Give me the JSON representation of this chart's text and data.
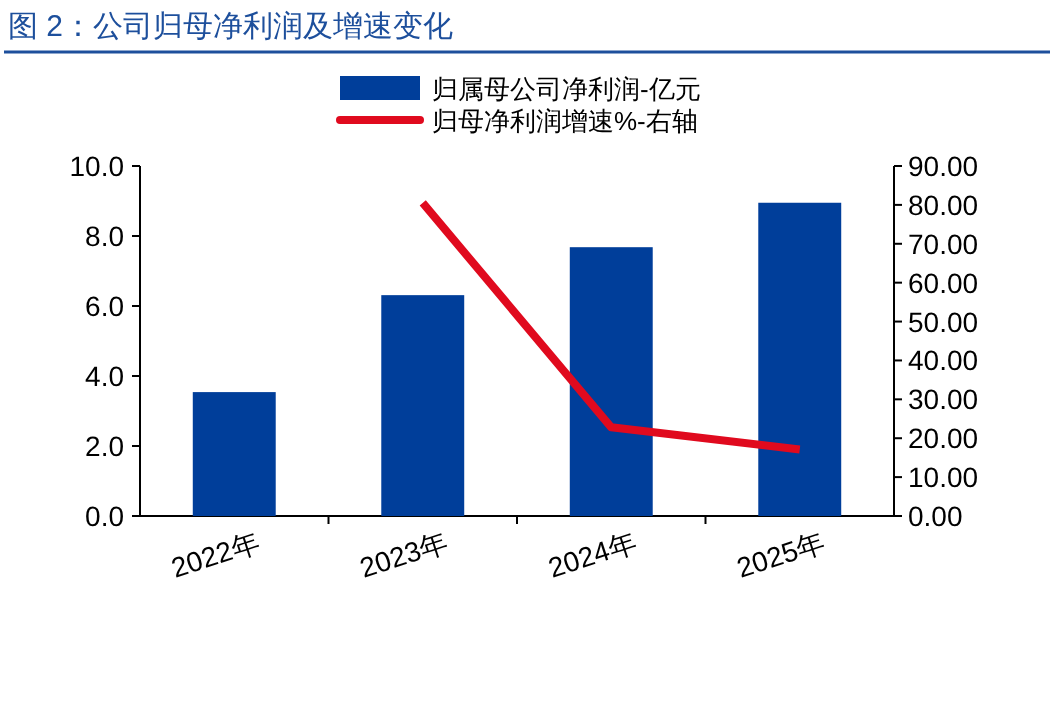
{
  "chart_data": {
    "type": "bar",
    "title": "图 2：公司归母净利润及增速变化",
    "categories": [
      "2022年",
      "2023年",
      "2024年",
      "2025年"
    ],
    "series": [
      {
        "name": "归属母公司净利润-亿元",
        "color": "#003e9a",
        "values": [
          3.54,
          6.31,
          7.68,
          8.95
        ]
      },
      {
        "name": "归母净利润增速%-右轴",
        "color": "#e00a1e",
        "type": "line",
        "axis": "y2",
        "values": [
          null,
          80.5,
          22.8,
          17.1
        ]
      }
    ],
    "ylim": [
      0,
      10
    ],
    "yticks": [
      {
        "value": 0,
        "label": "0.0"
      },
      {
        "value": 2,
        "label": "2.0"
      },
      {
        "value": 4,
        "label": "4.0"
      },
      {
        "value": 6,
        "label": "6.0"
      },
      {
        "value": 8,
        "label": "8.0"
      },
      {
        "value": 10,
        "label": "10.0"
      }
    ],
    "y2lim": [
      0,
      90
    ],
    "y2ticks": [
      {
        "value": 0,
        "label": "0.00"
      },
      {
        "value": 10,
        "label": "10.00"
      },
      {
        "value": 20,
        "label": "20.00"
      },
      {
        "value": 30,
        "label": "30.00"
      },
      {
        "value": 40,
        "label": "40.00"
      },
      {
        "value": 50,
        "label": "50.00"
      },
      {
        "value": 60,
        "label": "60.00"
      },
      {
        "value": 70,
        "label": "70.00"
      },
      {
        "value": 80,
        "label": "80.00"
      },
      {
        "value": 90,
        "label": "90.00"
      }
    ],
    "legend": "top",
    "grid": false
  }
}
